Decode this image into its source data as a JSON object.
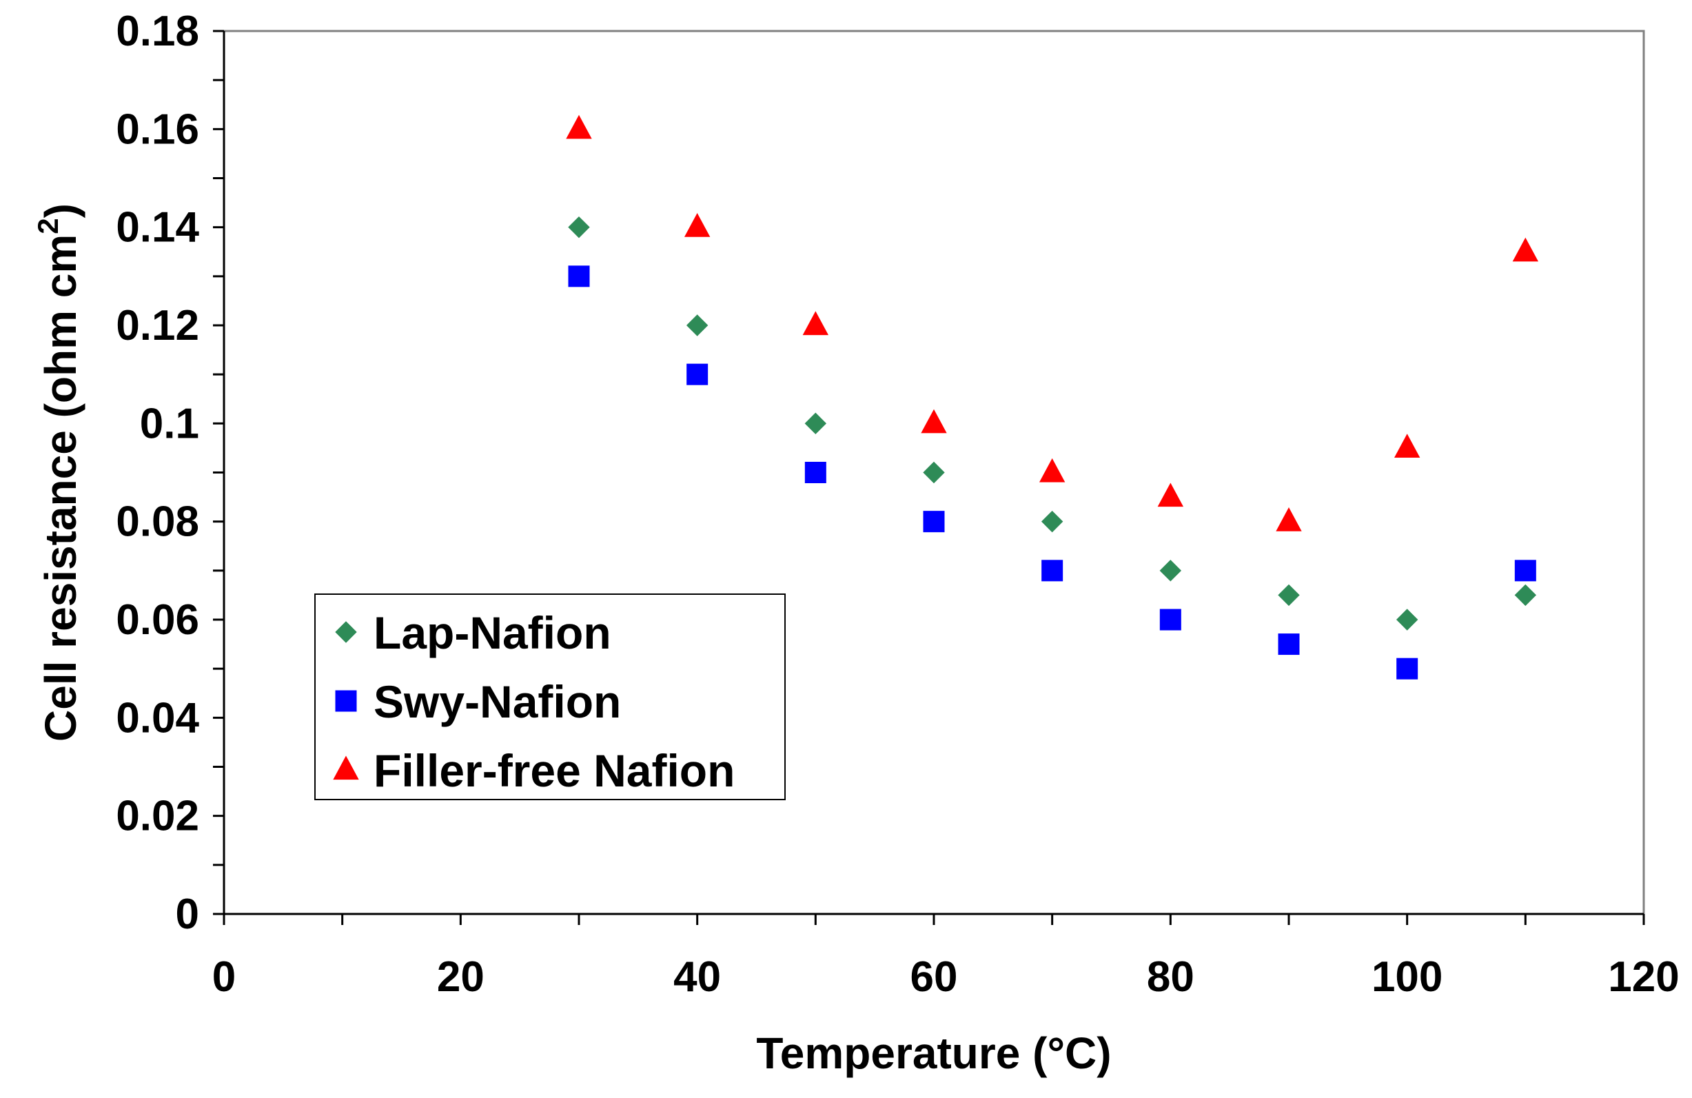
{
  "chart_data": {
    "type": "scatter",
    "title": "",
    "xlabel": "Temperature (°C)",
    "ylabel_main": "Cell resistance (ohm cm",
    "ylabel_sup": "2",
    "ylabel_close": ")",
    "xlim": [
      0,
      120
    ],
    "ylim": [
      0,
      0.18
    ],
    "x_ticks": [
      0,
      20,
      40,
      60,
      80,
      100,
      120
    ],
    "x_tick_labels": [
      "0",
      "20",
      "40",
      "60",
      "80",
      "100",
      "120"
    ],
    "x_minor_step": 10,
    "y_ticks": [
      0,
      0.02,
      0.04,
      0.06,
      0.08,
      0.1,
      0.12,
      0.14,
      0.16,
      0.18
    ],
    "y_tick_labels": [
      "0",
      "0.02",
      "0.04",
      "0.06",
      "0.08",
      "0.1",
      "0.12",
      "0.14",
      "0.16",
      "0.18"
    ],
    "y_minor_step": 0.01,
    "grid": false,
    "legend_position": "lower-left",
    "x": [
      30,
      40,
      50,
      60,
      70,
      80,
      90,
      100,
      110
    ],
    "series": [
      {
        "name": "Lap-Nafion",
        "marker": "diamond",
        "color": "#2e8b57",
        "values": [
          0.14,
          0.12,
          0.1,
          0.09,
          0.08,
          0.07,
          0.065,
          0.06,
          0.065
        ]
      },
      {
        "name": "Swy-Nafion",
        "marker": "square",
        "color": "#0000ff",
        "values": [
          0.13,
          0.11,
          0.09,
          0.08,
          0.07,
          0.06,
          0.055,
          0.05,
          0.07
        ]
      },
      {
        "name": "Filler-free Nafion",
        "marker": "triangle",
        "color": "#ff0000",
        "values": [
          0.16,
          0.14,
          0.12,
          0.1,
          0.09,
          0.085,
          0.08,
          0.095,
          0.135
        ]
      }
    ]
  }
}
